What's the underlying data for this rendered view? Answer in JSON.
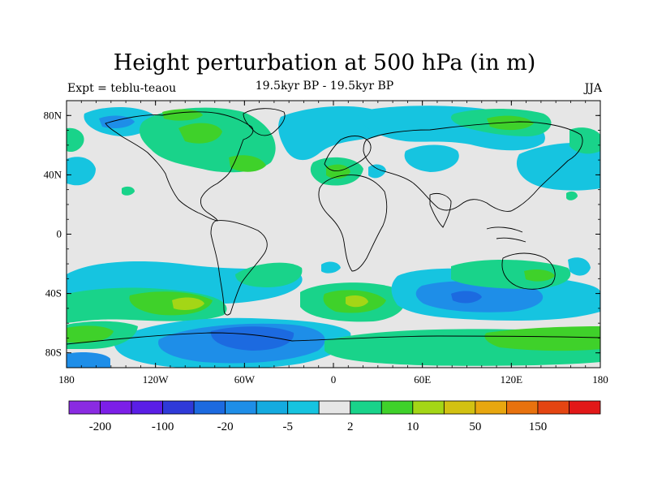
{
  "title": "Height perturbation at 500 hPa (in m)",
  "subtitle": "19.5kyr BP - 19.5kyr BP",
  "left_label": "Expt = teblu-teaou",
  "right_label": "JJA",
  "map": {
    "projection": "cylindrical-equidistant",
    "lon_range": [
      -180,
      180
    ],
    "lat_range": [
      -90,
      90
    ],
    "y_ticks": [
      {
        "lat": 80,
        "label": "80N"
      },
      {
        "lat": 40,
        "label": "40N"
      },
      {
        "lat": 0,
        "label": "0"
      },
      {
        "lat": -40,
        "label": "40S"
      },
      {
        "lat": -80,
        "label": "80S"
      }
    ],
    "x_ticks": [
      {
        "lon": -180,
        "label": "180"
      },
      {
        "lon": -120,
        "label": "120W"
      },
      {
        "lon": -60,
        "label": "60W"
      },
      {
        "lon": 0,
        "label": "0"
      },
      {
        "lon": 60,
        "label": "60E"
      },
      {
        "lon": 120,
        "label": "120E"
      },
      {
        "lon": 180,
        "label": "180"
      }
    ]
  },
  "colorbar": {
    "colors": [
      "#8a2be2",
      "#7c1fe8",
      "#5a1ee6",
      "#2f3ad8",
      "#1c6ae0",
      "#1e8ee8",
      "#14abe0",
      "#16c4e0",
      "#e6e6e6",
      "#19d38a",
      "#3fd12a",
      "#a4d616",
      "#d2c112",
      "#e8a70f",
      "#e8720e",
      "#e44512",
      "#e21818"
    ],
    "labels": [
      "-200",
      "-100",
      "-20",
      "-5",
      "2",
      "10",
      "50",
      "150"
    ]
  },
  "colors": {
    "neutral": "#e6e6e6",
    "light_blue": "#16c4e0",
    "mid_blue": "#1e8ee8",
    "deep_blue": "#1c6ae0",
    "green_teal": "#19d38a",
    "green": "#3fd12a",
    "yellow_green": "#a4d616"
  }
}
